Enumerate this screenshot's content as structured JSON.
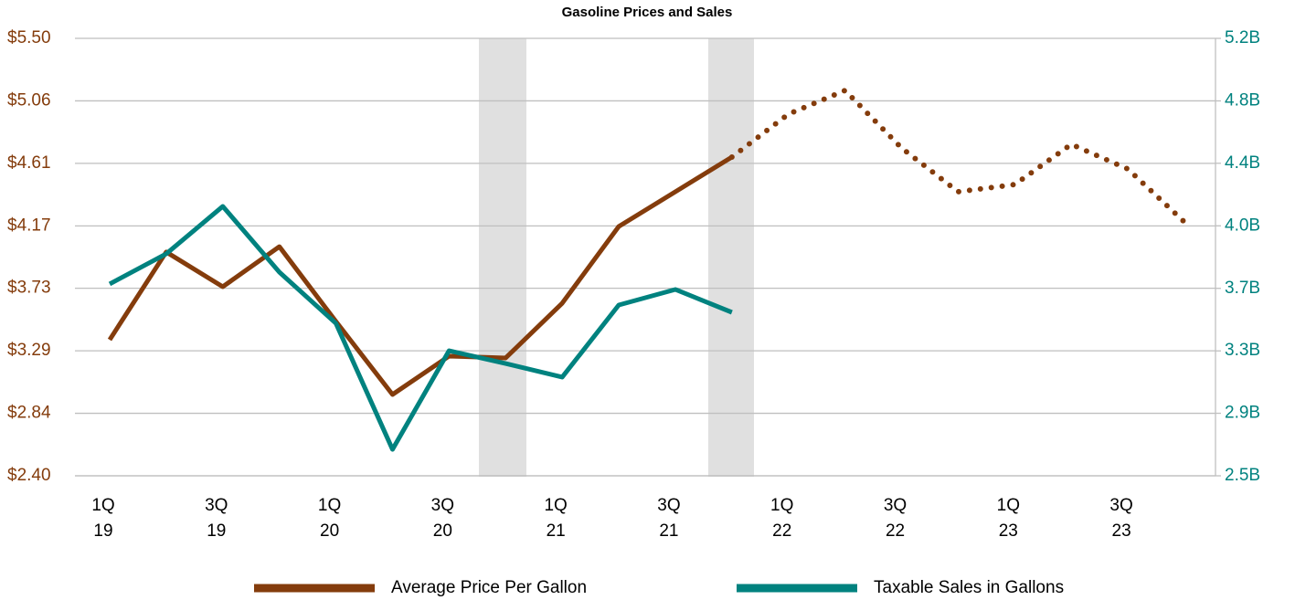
{
  "chart_data": {
    "type": "line",
    "title": "Gasoline Prices and Sales",
    "categories": [
      "1Q\n19",
      null,
      "3Q\n19",
      null,
      "1Q\n20",
      null,
      "3Q\n20",
      null,
      "1Q\n21",
      null,
      "3Q\n21",
      null,
      "1Q\n22",
      null,
      "3Q\n22",
      null,
      "1Q\n23",
      null,
      "3Q\n23",
      null
    ],
    "series": [
      {
        "name": "Average Price Per Gallon",
        "color": "#843c0c",
        "axis": "y",
        "dotted_from_index": 11,
        "values": [
          3.364,
          3.986,
          3.74,
          4.024,
          3.494,
          2.976,
          3.248,
          3.235,
          3.623,
          4.167,
          4.413,
          4.659,
          4.963,
          5.131,
          4.723,
          4.413,
          4.464,
          4.749,
          4.574,
          4.199
        ]
      },
      {
        "name": "Taxable Sales in Gallons",
        "color": "#00827f",
        "axis": "y2",
        "values": [
          3.684,
          3.87,
          4.163,
          3.757,
          3.441,
          2.663,
          3.272,
          3.193,
          3.109,
          3.554,
          3.65,
          3.509,
          null,
          null,
          null,
          null,
          null,
          null,
          null,
          null
        ]
      }
    ],
    "ylim": [
      2.4,
      5.5
    ],
    "yticks": [
      {
        "value": 2.4,
        "label": "$2.40"
      },
      {
        "value": 2.843,
        "label": "$2.84"
      },
      {
        "value": 3.286,
        "label": "$3.29"
      },
      {
        "value": 3.729,
        "label": "$3.73"
      },
      {
        "value": 4.171,
        "label": "$4.17"
      },
      {
        "value": 4.614,
        "label": "$4.61"
      },
      {
        "value": 5.057,
        "label": "$5.06"
      },
      {
        "value": 5.5,
        "label": "$5.50"
      }
    ],
    "y2lim": [
      2.5,
      5.2
    ],
    "y2ticks": [
      {
        "value": 2.5,
        "label": "2.5B"
      },
      {
        "value": 2.886,
        "label": "2.9B"
      },
      {
        "value": 3.271,
        "label": "3.3B"
      },
      {
        "value": 3.657,
        "label": "3.7B"
      },
      {
        "value": 4.043,
        "label": "4.0B"
      },
      {
        "value": 4.429,
        "label": "4.4B"
      },
      {
        "value": 4.814,
        "label": "4.8B"
      },
      {
        "value": 5.2,
        "label": "5.2B"
      }
    ],
    "grid": true,
    "legend": "bottom"
  }
}
